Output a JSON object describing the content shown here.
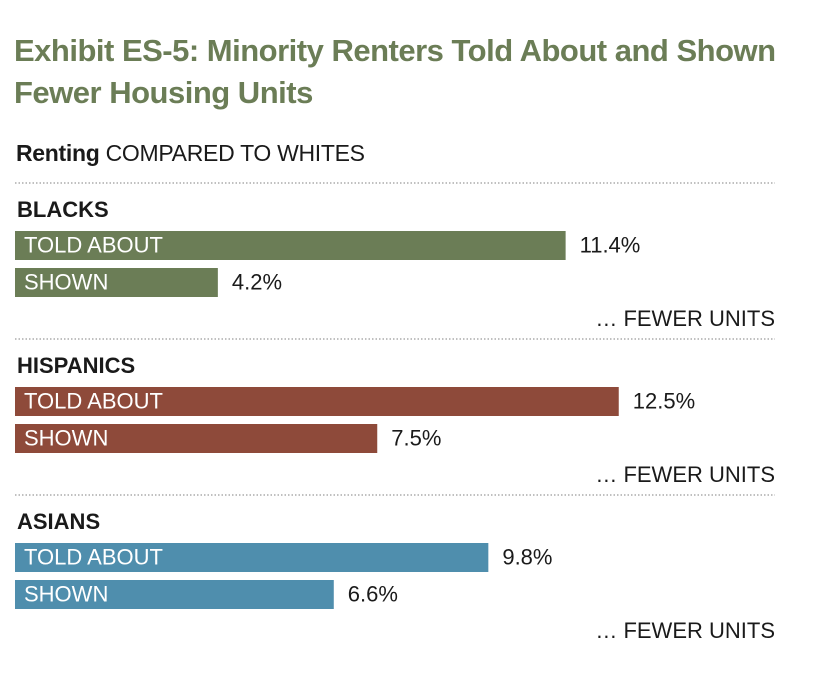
{
  "chart_data": {
    "type": "bar",
    "orientation": "horizontal",
    "title_lines": [
      "Exhibit ES-5: Minority Renters Told About and Shown",
      "Fewer Housing Units"
    ],
    "subtitle_strong": "Renting",
    "subtitle_rest": "COMPARED TO WHITES",
    "unit_note": "… FEWER UNITS",
    "groups": [
      {
        "name": "BLACKS",
        "color": "#6b7d56",
        "bars": [
          {
            "label": "TOLD ABOUT",
            "value": 11.4,
            "display": "11.4%"
          },
          {
            "label": "SHOWN",
            "value": 4.2,
            "display": "4.2%"
          }
        ]
      },
      {
        "name": "HISPANICS",
        "color": "#8e4a3a",
        "bars": [
          {
            "label": "TOLD ABOUT",
            "value": 12.5,
            "display": "12.5%"
          },
          {
            "label": "SHOWN",
            "value": 7.5,
            "display": "7.5%"
          }
        ]
      },
      {
        "name": "ASIANS",
        "color": "#4f8ead",
        "bars": [
          {
            "label": "TOLD ABOUT",
            "value": 9.8,
            "display": "9.8%"
          },
          {
            "label": "SHOWN",
            "value": 6.6,
            "display": "6.6%"
          }
        ]
      }
    ]
  },
  "colors": {
    "title": "#6b7d56",
    "text": "#1a1a1a",
    "divider": "#9a9a9a"
  }
}
